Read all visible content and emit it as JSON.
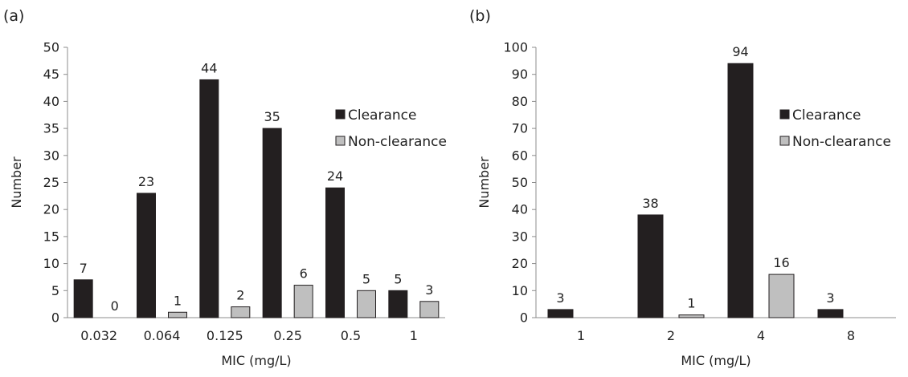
{
  "chart_data": [
    {
      "panel_label": "(a)",
      "type": "bar",
      "xlabel": "MIC (mg/L)",
      "ylabel": "Number",
      "ylim": [
        0,
        50
      ],
      "ytick_step": 5,
      "categories": [
        "0.032",
        "0.064",
        "0.125",
        "0.25",
        "0.5",
        "1"
      ],
      "series": [
        {
          "name": "Clearance",
          "color": "#231f20",
          "values": [
            7,
            23,
            44,
            35,
            24,
            5
          ]
        },
        {
          "name": "Non-clearance",
          "color": "#bfbfbf",
          "values": [
            0,
            1,
            2,
            6,
            5,
            3
          ]
        }
      ],
      "legend_position": "right",
      "grid": false
    },
    {
      "panel_label": "(b)",
      "type": "bar",
      "xlabel": "MIC (mg/L)",
      "ylabel": "Number",
      "ylim": [
        0,
        100
      ],
      "ytick_step": 10,
      "categories": [
        "1",
        "2",
        "4",
        "8"
      ],
      "series": [
        {
          "name": "Clearance",
          "color": "#231f20",
          "values": [
            3,
            38,
            94,
            3
          ]
        },
        {
          "name": "Non-clearance",
          "color": "#bfbfbf",
          "values": [
            null,
            1,
            16,
            null
          ]
        }
      ],
      "legend_position": "right",
      "grid": false
    }
  ]
}
